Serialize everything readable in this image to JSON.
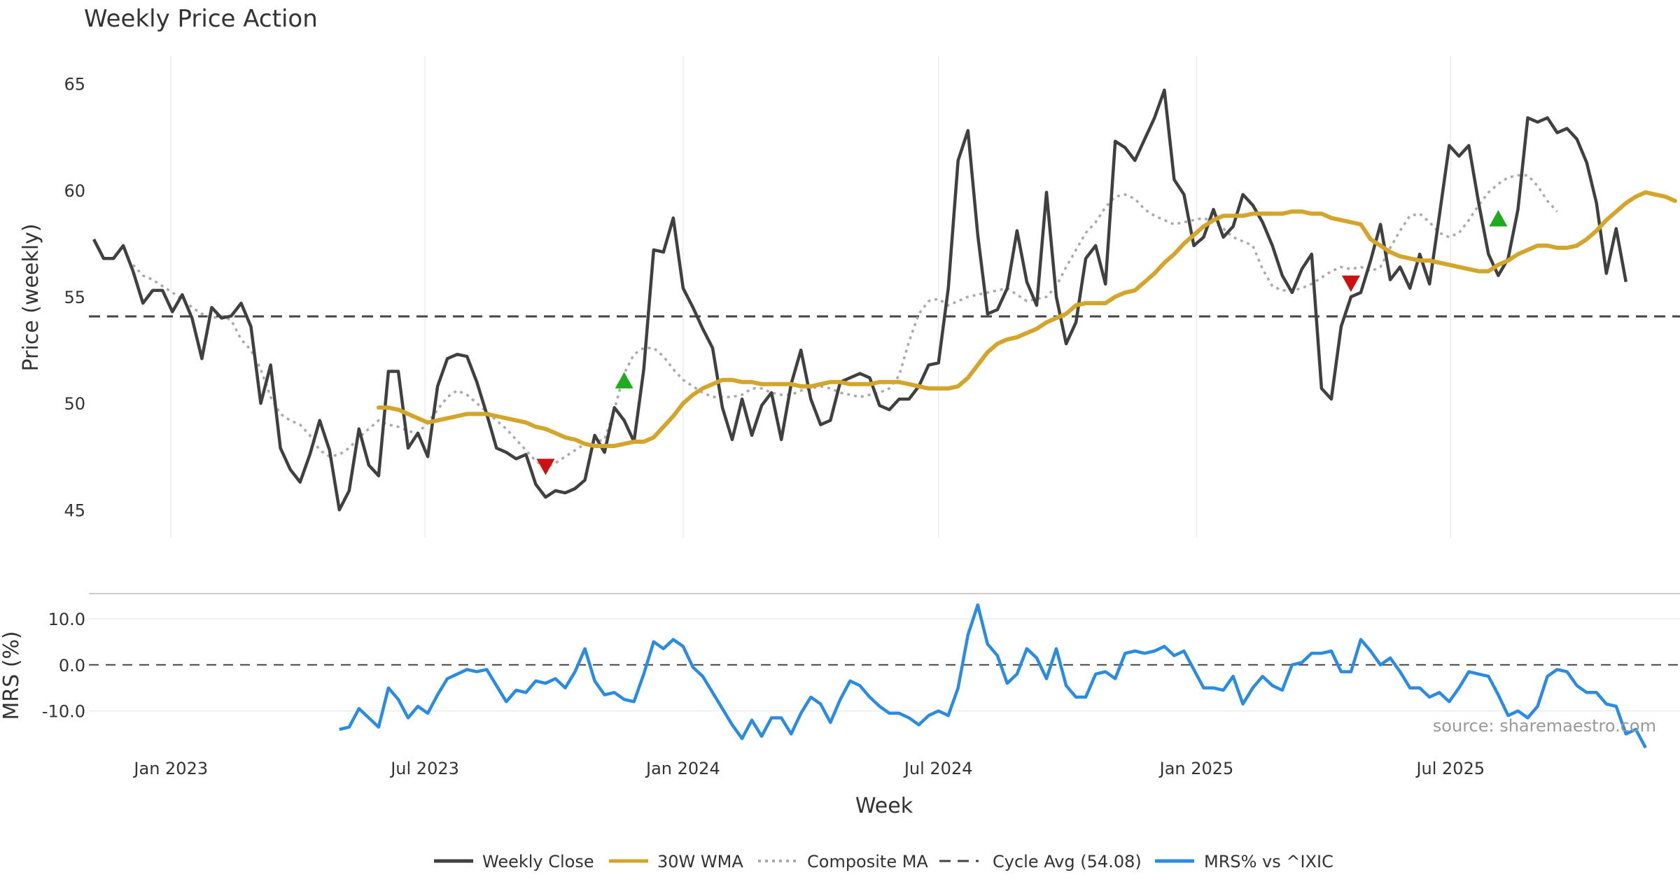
{
  "colors": {
    "close": "#404040",
    "wma": "#d4a52b",
    "composite": "#aaaaaa",
    "cycle": "#444444",
    "mrs": "#2a8be2",
    "up_marker": "#1faa1f",
    "down_marker": "#cc1111",
    "grid": "#ececec",
    "separator": "#cccccc"
  },
  "chart_data": [
    {
      "type": "line",
      "title": "Weekly Price Action",
      "ylabel": "Price (weekly)",
      "xlabel": "Week",
      "x_start": "2022-11-07",
      "week_step": 1,
      "x_ticks": [
        "Jan 2023",
        "Jul 2023",
        "Jan 2024",
        "Jul 2024",
        "Jan 2025",
        "Jul 2025"
      ],
      "x_tick_dates": [
        "2023-01-01",
        "2023-07-01",
        "2024-01-01",
        "2024-07-01",
        "2025-01-01",
        "2025-07-01"
      ],
      "ylim": [
        43.7,
        66.3
      ],
      "y_ticks": [
        "45",
        "50",
        "55",
        "60",
        "65"
      ],
      "grid": true,
      "cycle_avg": 54.08,
      "series": [
        {
          "name": "Weekly Close",
          "values": [
            57.7,
            56.8,
            56.8,
            57.4,
            56.2,
            54.7,
            55.3,
            55.3,
            54.3,
            55.1,
            54.0,
            52.1,
            54.5,
            54.0,
            54.1,
            54.7,
            53.6,
            50.0,
            51.8,
            47.9,
            46.9,
            46.3,
            47.6,
            49.2,
            47.8,
            45.0,
            45.9,
            48.8,
            47.1,
            46.6,
            51.5,
            51.5,
            47.9,
            48.6,
            47.5,
            50.8,
            52.1,
            52.3,
            52.2,
            51.0,
            49.5,
            47.9,
            47.7,
            47.4,
            47.6,
            46.2,
            45.6,
            45.9,
            45.8,
            46.0,
            46.4,
            48.5,
            47.7,
            49.8,
            49.2,
            48.2,
            51.6,
            57.2,
            57.1,
            58.7,
            55.4,
            54.5,
            53.5,
            52.6,
            49.8,
            48.3,
            50.2,
            48.5,
            49.9,
            50.5,
            48.3,
            50.9,
            52.5,
            50.2,
            49.0,
            49.2,
            51.0,
            51.2,
            51.4,
            51.2,
            49.9,
            49.7,
            50.2,
            50.2,
            50.8,
            51.8,
            51.9,
            55.4,
            61.4,
            62.8,
            57.9,
            54.2,
            54.4,
            55.4,
            58.1,
            55.7,
            54.6,
            59.9,
            55.0,
            52.8,
            53.8,
            56.8,
            57.4,
            55.6,
            62.3,
            62.0,
            61.4,
            62.4,
            63.4,
            64.7,
            60.5,
            59.8,
            57.4,
            57.8,
            59.1,
            57.8,
            58.3,
            59.8,
            59.3,
            58.5,
            57.4,
            56.0,
            55.2,
            56.3,
            57.0,
            50.7,
            50.2,
            53.6,
            55.0,
            55.2,
            56.7,
            58.4,
            55.8,
            56.4,
            55.4,
            57.0,
            55.6,
            58.8,
            62.1,
            61.6,
            62.1,
            59.4,
            57.0,
            56.0,
            56.8,
            59.1,
            63.4,
            63.2,
            63.4,
            62.7,
            62.9,
            62.4,
            61.3,
            59.4,
            56.1,
            58.2,
            55.7
          ]
        },
        {
          "name": "30W WMA",
          "start_index": 29,
          "values": [
            49.8,
            49.8,
            49.7,
            49.5,
            49.3,
            49.1,
            49.2,
            49.3,
            49.4,
            49.5,
            49.5,
            49.5,
            49.4,
            49.3,
            49.2,
            49.1,
            48.9,
            48.8,
            48.6,
            48.4,
            48.3,
            48.1,
            48.0,
            48.0,
            48.0,
            48.1,
            48.2,
            48.2,
            48.4,
            48.9,
            49.4,
            50.0,
            50.4,
            50.7,
            50.9,
            51.1,
            51.1,
            51.0,
            51.0,
            50.9,
            50.9,
            50.9,
            50.9,
            50.8,
            50.8,
            50.9,
            51.0,
            51.0,
            50.9,
            50.9,
            50.9,
            51.0,
            51.0,
            51.0,
            50.9,
            50.8,
            50.7,
            50.7,
            50.7,
            50.8,
            51.2,
            51.8,
            52.4,
            52.8,
            53.0,
            53.1,
            53.3,
            53.5,
            53.8,
            54.0,
            54.2,
            54.6,
            54.7,
            54.7,
            54.7,
            55.0,
            55.2,
            55.3,
            55.7,
            56.1,
            56.6,
            57.0,
            57.5,
            57.9,
            58.3,
            58.6,
            58.8,
            58.8,
            58.8,
            58.9,
            58.9,
            58.9,
            58.9,
            59.0,
            59.0,
            58.9,
            58.9,
            58.7,
            58.6,
            58.5,
            58.4,
            57.7,
            57.4,
            57.1,
            56.9,
            56.8,
            56.7,
            56.7,
            56.6,
            56.5,
            56.4,
            56.3,
            56.2,
            56.2,
            56.5,
            56.7,
            57.0,
            57.2,
            57.4,
            57.4,
            57.3,
            57.3,
            57.4,
            57.7,
            58.1,
            58.6,
            59.0,
            59.4,
            59.7,
            59.9,
            59.8,
            59.7,
            59.5
          ]
        },
        {
          "name": "Composite MA",
          "start_index": 4,
          "values": [
            56.5,
            56.0,
            55.8,
            55.5,
            55.2,
            54.9,
            54.5,
            54.2,
            54.0,
            54.1,
            53.9,
            53.0,
            52.5,
            51.6,
            50.3,
            49.5,
            49.2,
            49.0,
            48.5,
            47.8,
            47.5,
            47.6,
            47.9,
            48.4,
            48.8,
            49.2,
            49.0,
            48.9,
            48.7,
            48.6,
            49.1,
            49.7,
            50.3,
            50.6,
            50.4,
            50.0,
            49.6,
            49.2,
            48.8,
            48.3,
            47.8,
            47.3,
            47.0,
            47.2,
            47.5,
            47.8,
            48.1,
            48.2,
            48.3,
            49.7,
            51.4,
            52.3,
            52.6,
            52.6,
            52.2,
            51.6,
            51.1,
            50.8,
            50.5,
            50.3,
            50.3,
            50.3,
            50.4,
            50.7,
            50.7,
            50.5,
            50.4,
            50.4,
            50.6,
            50.7,
            50.8,
            50.7,
            50.5,
            50.4,
            50.3,
            50.4,
            50.5,
            50.7,
            51.3,
            52.9,
            54.2,
            54.8,
            54.9,
            54.6,
            54.8,
            55.0,
            55.1,
            55.2,
            55.3,
            55.4,
            55.1,
            54.8,
            54.9,
            55.0,
            55.5,
            56.4,
            57.2,
            58.0,
            58.5,
            59.2,
            59.7,
            59.8,
            59.6,
            59.1,
            58.8,
            58.6,
            58.4,
            58.5,
            58.6,
            58.7,
            58.5,
            58.2,
            57.8,
            57.6,
            57.4,
            56.3,
            55.5,
            55.3,
            55.3,
            55.4,
            55.6,
            55.9,
            56.2,
            56.4,
            56.3,
            56.4,
            56.2,
            56.4,
            57.3,
            58.1,
            58.8,
            58.9,
            58.5,
            58.0,
            57.8,
            58.0,
            58.6,
            59.3,
            59.9,
            60.3,
            60.6,
            60.7,
            60.7,
            60.2,
            59.5,
            59.0
          ]
        },
        {
          "name": "Cycle Avg (54.08)",
          "value": 54.08
        }
      ],
      "markers": [
        {
          "direction": "down",
          "index": 46,
          "value": 47.1
        },
        {
          "direction": "up",
          "index": 54,
          "value": 51.0
        },
        {
          "direction": "down",
          "index": 128,
          "value": 55.7
        },
        {
          "direction": "up",
          "index": 143,
          "value": 58.6
        }
      ]
    },
    {
      "type": "line",
      "ylabel": "MRS (%)",
      "ylim": [
        -17.5,
        15.0
      ],
      "y_ticks": [
        "10.0",
        "0.0",
        "-10.0"
      ],
      "zero_line": 0.0,
      "series": [
        {
          "name": "MRS% vs ^IXIC",
          "start_index": 25,
          "values": [
            -14.0,
            -13.5,
            -9.5,
            -11.5,
            -13.5,
            -5.0,
            -7.5,
            -11.5,
            -9.0,
            -10.5,
            -6.5,
            -3.0,
            -2.0,
            -1.0,
            -1.5,
            -1.0,
            -4.5,
            -8.0,
            -5.5,
            -6.0,
            -3.5,
            -4.0,
            -3.0,
            -5.0,
            -1.5,
            3.5,
            -3.5,
            -6.5,
            -6.0,
            -7.5,
            -8.0,
            -2.0,
            5.0,
            3.5,
            5.5,
            4.0,
            -0.5,
            -2.5,
            -6.0,
            -9.5,
            -13.0,
            -16.0,
            -12.0,
            -15.5,
            -11.5,
            -11.5,
            -15.0,
            -10.5,
            -7.0,
            -8.5,
            -12.5,
            -7.5,
            -3.5,
            -4.5,
            -7.0,
            -9.0,
            -10.5,
            -10.5,
            -11.5,
            -13.0,
            -11.0,
            -10.0,
            -11.0,
            -5.0,
            6.5,
            13.0,
            4.5,
            2.0,
            -4.0,
            -2.0,
            3.5,
            1.5,
            -3.0,
            3.5,
            -4.5,
            -7.0,
            -7.0,
            -2.0,
            -1.5,
            -3.0,
            2.5,
            3.0,
            2.5,
            3.0,
            4.0,
            2.0,
            3.0,
            -1.0,
            -5.0,
            -5.0,
            -5.5,
            -2.5,
            -8.5,
            -5.0,
            -2.5,
            -4.5,
            -5.5,
            0.0,
            0.5,
            2.5,
            2.5,
            3.0,
            -1.5,
            -1.5,
            5.5,
            3.0,
            0.0,
            1.5,
            -1.5,
            -5.0,
            -5.0,
            -7.0,
            -6.0,
            -8.0,
            -5.0,
            -1.5,
            -2.0,
            -2.5,
            -6.5,
            -11.0,
            -10.0,
            -11.5,
            -9.0,
            -2.5,
            -1.0,
            -1.5,
            -4.5,
            -6.0,
            -6.0,
            -8.5,
            -9.0,
            -15.0,
            -14.0,
            -18.0
          ]
        }
      ],
      "source": "source: sharemaestro.com"
    }
  ],
  "legend": {
    "position": "bottom-center",
    "items": [
      {
        "label": "Weekly Close",
        "style": "solid",
        "color": "#404040"
      },
      {
        "label": "30W WMA",
        "style": "solid",
        "color": "#d4a52b"
      },
      {
        "label": "Composite MA",
        "style": "dotted",
        "color": "#aaaaaa"
      },
      {
        "label": "Cycle Avg (54.08)",
        "style": "dashed",
        "color": "#444444"
      },
      {
        "label": "MRS% vs ^IXIC",
        "style": "solid",
        "color": "#2a8be2"
      }
    ]
  }
}
